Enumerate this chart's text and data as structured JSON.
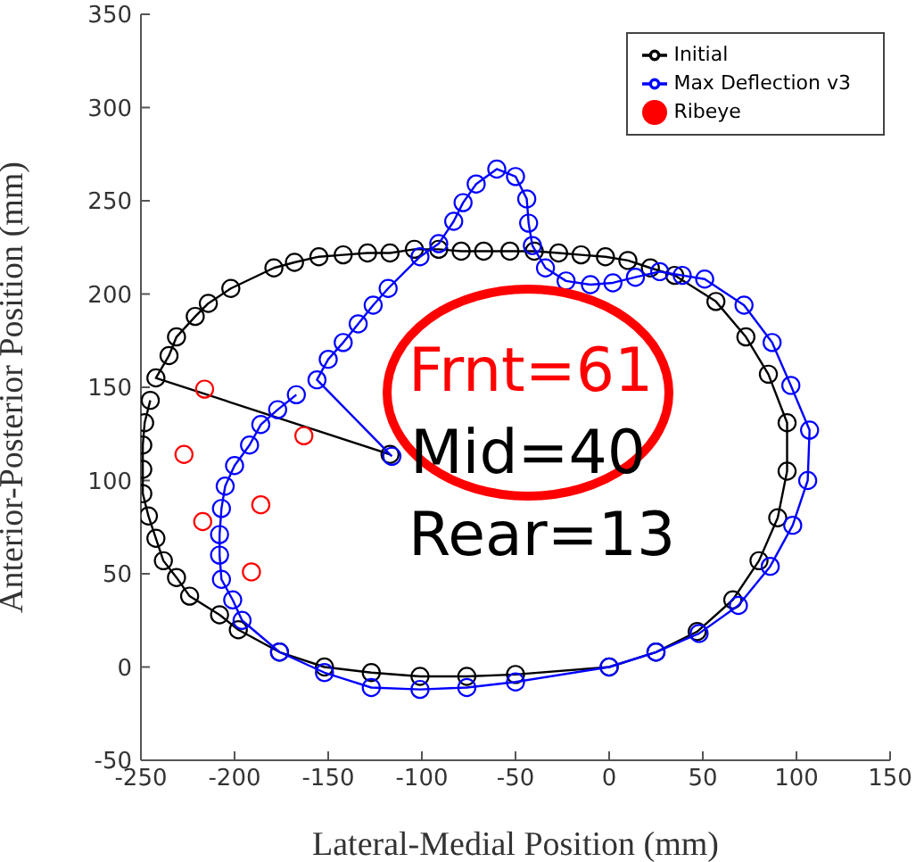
{
  "chart_data": {
    "type": "line",
    "xlabel": "Lateral-Medial Position (mm)",
    "ylabel": "Anterior-Posterior Position (mm)",
    "xlim": [
      -250,
      150
    ],
    "xticks": [
      -250,
      -200,
      -150,
      -100,
      -50,
      0,
      50,
      100,
      150
    ],
    "ylim": [
      -50,
      350
    ],
    "yticks": [
      -50,
      0,
      50,
      100,
      150,
      200,
      250,
      300,
      350
    ],
    "legend": "top right",
    "marker": "circle",
    "grid": false,
    "annotations": [
      "Frnt=61",
      "Mid=40",
      "Rear=13"
    ],
    "series": [
      {
        "name": "Initial",
        "type": "line",
        "color": "#000000",
        "x": [
          -117,
          -242,
          -235,
          -231,
          -221,
          -214,
          -202,
          -179,
          -168,
          -155,
          -142,
          -129,
          -117,
          -104,
          -91,
          -79,
          -67,
          -53,
          -40,
          -27,
          -15,
          -2,
          10,
          22,
          35,
          57,
          73,
          85,
          95,
          95,
          90,
          80,
          66,
          47,
          25,
          0,
          -50,
          -76,
          -101,
          -127,
          -152,
          -176,
          -198,
          -208,
          -224,
          -231,
          -238,
          -242,
          -246,
          -249,
          -249,
          -249,
          -248,
          -245
        ],
        "values": [
          114,
          155,
          167,
          177,
          188,
          195,
          203,
          214,
          217,
          220,
          221,
          222,
          222,
          224,
          224,
          223,
          223,
          223,
          223,
          222,
          221,
          220,
          218,
          214,
          210,
          196,
          177,
          157,
          131,
          105,
          80,
          57,
          36,
          19,
          8,
          0,
          -4,
          -5,
          -5,
          -3,
          0,
          8,
          20,
          28,
          38,
          48,
          57,
          69,
          81,
          93,
          106,
          119,
          131,
          143
        ]
      },
      {
        "name": "Max Deflection v3",
        "type": "line",
        "color": "#0000ff",
        "x": [
          -116,
          -156,
          -150,
          -142,
          -134,
          -126,
          -118,
          -101,
          -91,
          -83,
          -78,
          -71,
          -60,
          -50,
          -44,
          -43,
          -41,
          -34,
          -23,
          -10,
          2,
          14,
          27,
          39,
          51,
          72,
          87,
          97,
          107,
          106,
          98,
          86,
          69,
          48,
          25,
          0,
          -50,
          -76,
          -101,
          -127,
          -152,
          -176,
          -196,
          -201,
          -207,
          -208,
          -208,
          -207,
          -205,
          -200,
          -192,
          -186,
          -177,
          -167
        ],
        "values": [
          113,
          154,
          165,
          174,
          184,
          194,
          203,
          220,
          227,
          239,
          249,
          259,
          267,
          263,
          251,
          238,
          226,
          214,
          207,
          205,
          206,
          209,
          212,
          210,
          208,
          194,
          174,
          151,
          127,
          100,
          76,
          54,
          33,
          18,
          8,
          0,
          -8,
          -11,
          -12,
          -11,
          -3,
          8,
          25,
          36,
          47,
          60,
          71,
          85,
          97,
          108,
          119,
          130,
          138,
          146
        ]
      },
      {
        "name": "Ribeye",
        "type": "scatter",
        "color": "#ff0000",
        "x": [
          -216,
          -163,
          -227,
          -186,
          -217,
          -191
        ],
        "values": [
          149,
          124,
          114,
          87,
          78,
          51
        ]
      }
    ]
  }
}
